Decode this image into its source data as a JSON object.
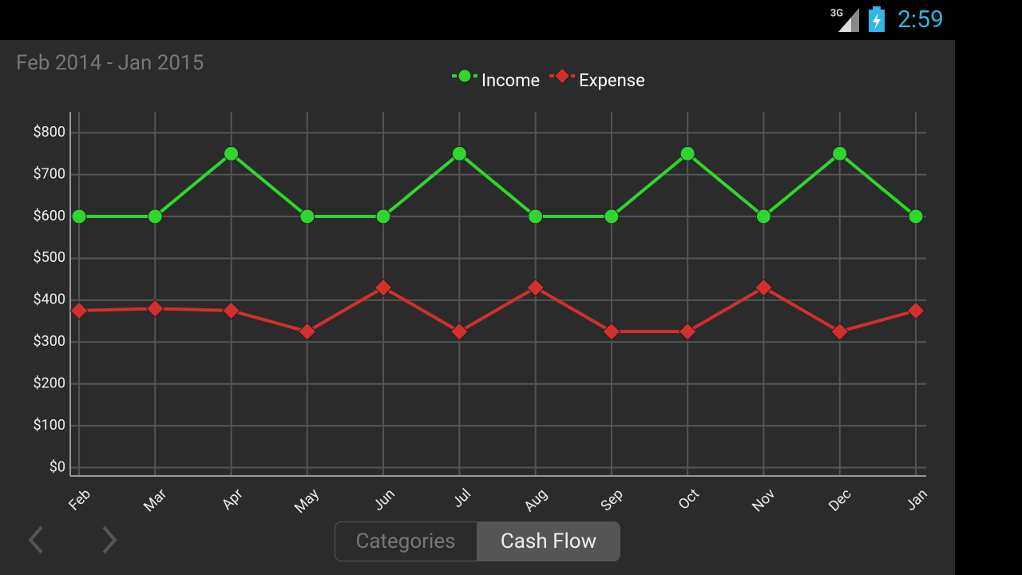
{
  "status_bar": {
    "network": "3G",
    "time": "2:59"
  },
  "header": {
    "date_range": "Feb 2014 - Jan 2015"
  },
  "chart_data": {
    "type": "line",
    "categories": [
      "Feb",
      "Mar",
      "Apr",
      "May",
      "Jun",
      "Jul",
      "Aug",
      "Sep",
      "Oct",
      "Nov",
      "Dec",
      "Jan"
    ],
    "series": [
      {
        "name": "Income",
        "color": "#2fd62f",
        "marker": "circle",
        "values": [
          600,
          600,
          750,
          600,
          600,
          750,
          600,
          600,
          750,
          600,
          750,
          600
        ]
      },
      {
        "name": "Expense",
        "color": "#d32f2f",
        "marker": "diamond",
        "values": [
          375,
          380,
          375,
          325,
          430,
          325,
          430,
          325,
          325,
          430,
          325,
          375
        ]
      }
    ],
    "ylim": [
      -20,
      850
    ],
    "yticks": [
      {
        "value": 0,
        "label": "$0"
      },
      {
        "value": 100,
        "label": "$100"
      },
      {
        "value": 200,
        "label": "$200"
      },
      {
        "value": 300,
        "label": "$300"
      },
      {
        "value": 400,
        "label": "$400"
      },
      {
        "value": 500,
        "label": "$500"
      },
      {
        "value": 600,
        "label": "$600"
      },
      {
        "value": 700,
        "label": "$700"
      },
      {
        "value": 800,
        "label": "$800"
      }
    ],
    "grid": true,
    "legend": "top"
  },
  "tabs": [
    "Categories",
    "Cash Flow"
  ]
}
